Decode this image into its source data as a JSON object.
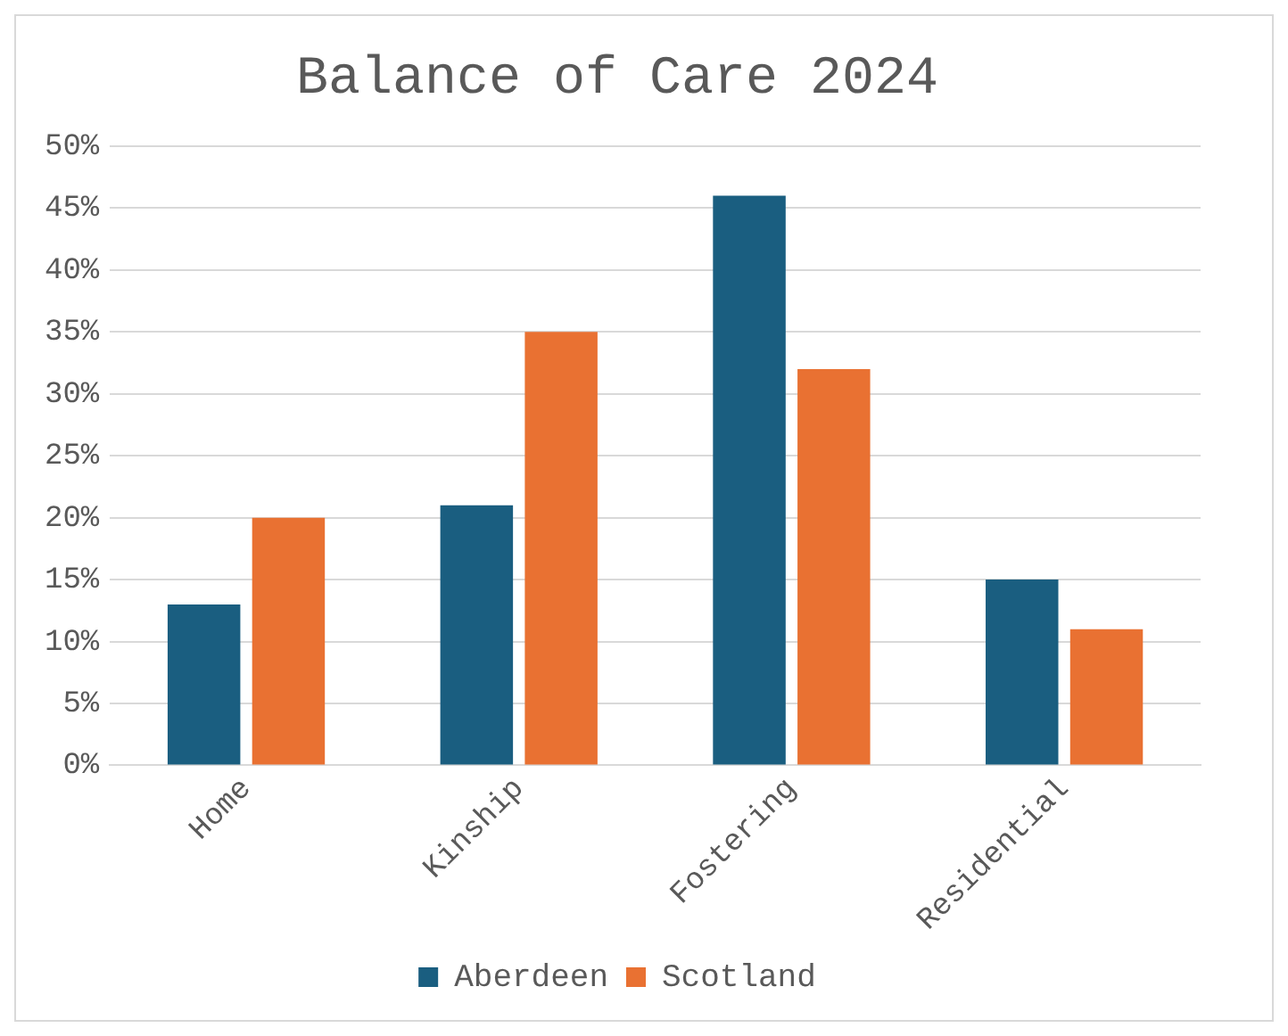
{
  "chart_data": {
    "type": "bar",
    "title": "Balance of Care 2024",
    "categories": [
      "Home",
      "Kinship",
      "Fostering",
      "Residential"
    ],
    "series": [
      {
        "name": "Aberdeen",
        "color": "#1a5e80",
        "values": [
          13,
          21,
          46,
          15
        ]
      },
      {
        "name": "Scotland",
        "color": "#e97132",
        "values": [
          20,
          35,
          32,
          11
        ]
      }
    ],
    "ylim": [
      0,
      50
    ],
    "yticks": [
      {
        "value": 0,
        "label": "0%"
      },
      {
        "value": 5,
        "label": "5%"
      },
      {
        "value": 10,
        "label": "10%"
      },
      {
        "value": 15,
        "label": "15%"
      },
      {
        "value": 20,
        "label": "20%"
      },
      {
        "value": 25,
        "label": "25%"
      },
      {
        "value": 30,
        "label": "30%"
      },
      {
        "value": 35,
        "label": "35%"
      },
      {
        "value": 40,
        "label": "40%"
      },
      {
        "value": 45,
        "label": "45%"
      },
      {
        "value": 50,
        "label": "50%"
      }
    ],
    "grid": "y",
    "legend": "bottom"
  }
}
